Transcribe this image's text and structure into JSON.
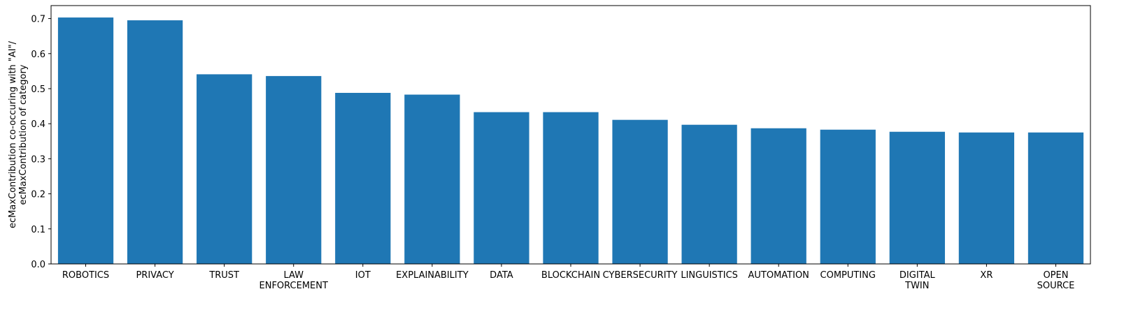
{
  "chart_data": {
    "type": "bar",
    "categories": [
      "ROBOTICS",
      "PRIVACY",
      "TRUST",
      "LAW\nENFORCEMENT",
      "IOT",
      "EXPLAINABILITY",
      "DATA",
      "BLOCKCHAIN",
      "CYBERSECURITY",
      "LINGUISTICS",
      "AUTOMATION",
      "COMPUTING",
      "DIGITAL\nTWIN",
      "XR",
      "OPEN\nSOURCE"
    ],
    "values": [
      0.703,
      0.695,
      0.541,
      0.536,
      0.488,
      0.483,
      0.433,
      0.433,
      0.411,
      0.397,
      0.387,
      0.383,
      0.377,
      0.375,
      0.375
    ],
    "title": "",
    "xlabel": "",
    "ylabel": "ecMaxContribution co-occuring with \"AI\"/\necMaxContribution of category",
    "ylim": [
      0,
      0.737
    ],
    "yticks": [
      "0.0",
      "0.1",
      "0.2",
      "0.3",
      "0.4",
      "0.5",
      "0.6",
      "0.7"
    ],
    "grid": false,
    "bar_color": "#1f77b4"
  }
}
